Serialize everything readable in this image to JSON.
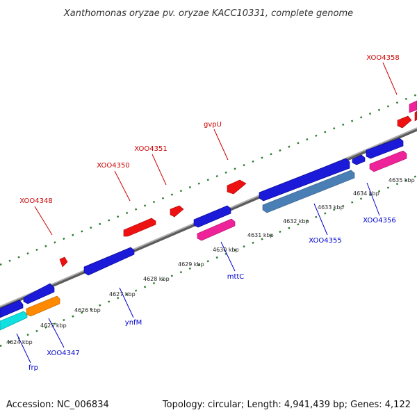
{
  "title": "Xanthomonas oryzae pv. oryzae KACC10331, complete genome",
  "footer": {
    "accession": "Accession: NC_006834",
    "summary": "Topology: circular; Length: 4,941,439 bp; Genes: 4,122"
  },
  "colors": {
    "backbone": "#8a8a8a",
    "tick_dots": "#2e7d32",
    "forward_label": "#cc0000",
    "reverse_label": "#0000cc"
  },
  "scale_labels": [
    "4624 kbp",
    "4625 kbp",
    "4626 kbp",
    "4627 kbp",
    "4628 kbp",
    "4629 kbp",
    "4630 kbp",
    "4631 kbp",
    "4632 kbp",
    "4633 kbp",
    "4634 kbp",
    "4635 kbp"
  ],
  "forward_labels": [
    "XOO4348",
    "XOO4350",
    "XOO4351",
    "gvpU",
    "XOO4358"
  ],
  "reverse_labels": [
    "frp",
    "XOO4347",
    "ynfM",
    "mttC",
    "XOO4355",
    "XOO4356"
  ],
  "feature_colors": {
    "red": "#ee1111",
    "blue": "#1a1ad8",
    "pink": "#ee2299",
    "orange": "#ff8a00",
    "cyan": "#11e0e0",
    "steel": "#4a7fb5"
  }
}
